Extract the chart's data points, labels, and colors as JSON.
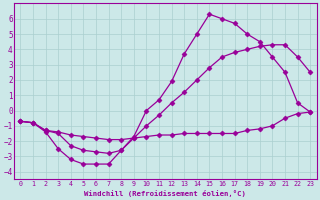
{
  "background_color": "#cce8e8",
  "grid_color": "#aacfcf",
  "line_color": "#990099",
  "xlabel": "Windchill (Refroidissement éolien,°C)",
  "ylim": [
    -4.5,
    7.0
  ],
  "xlim": [
    -0.5,
    23.5
  ],
  "yticks": [
    -4,
    -3,
    -2,
    -1,
    0,
    1,
    2,
    3,
    4,
    5,
    6
  ],
  "xticks": [
    0,
    1,
    2,
    3,
    4,
    5,
    6,
    7,
    8,
    9,
    10,
    11,
    12,
    13,
    14,
    15,
    16,
    17,
    18,
    19,
    20,
    21,
    22,
    23
  ],
  "line1_x": [
    0,
    1,
    2,
    3,
    4,
    5,
    6,
    7,
    8,
    9,
    10,
    11,
    12,
    13,
    14,
    15,
    16,
    17,
    18,
    19,
    20,
    21,
    22,
    23
  ],
  "line1_y": [
    -0.7,
    -0.8,
    -1.4,
    -2.5,
    -3.2,
    -3.5,
    -3.5,
    -3.5,
    -2.6,
    -1.8,
    -1.7,
    -1.6,
    -1.6,
    -1.5,
    -1.5,
    -1.5,
    -1.5,
    -1.5,
    -1.3,
    -1.2,
    -1.0,
    -0.5,
    -0.2,
    -0.1
  ],
  "line2_x": [
    0,
    1,
    2,
    3,
    4,
    5,
    6,
    7,
    8,
    9,
    10,
    11,
    12,
    13,
    14,
    15,
    16,
    17,
    18,
    19,
    20,
    21,
    22,
    23
  ],
  "line2_y": [
    -0.7,
    -0.8,
    -1.3,
    -1.4,
    -1.6,
    -1.7,
    -1.8,
    -1.9,
    -1.9,
    -1.8,
    -1.0,
    -0.3,
    0.5,
    1.2,
    2.0,
    2.8,
    3.5,
    3.8,
    4.0,
    4.2,
    4.3,
    4.3,
    3.5,
    2.5
  ],
  "line3_x": [
    0,
    1,
    2,
    3,
    4,
    5,
    6,
    7,
    8,
    9,
    10,
    11,
    12,
    13,
    14,
    15,
    16,
    17,
    18,
    19,
    20,
    21,
    22,
    23
  ],
  "line3_y": [
    -0.7,
    -0.8,
    -1.3,
    -1.5,
    -2.3,
    -2.6,
    -2.7,
    -2.8,
    -2.6,
    -1.7,
    0.0,
    0.7,
    1.9,
    3.7,
    5.0,
    6.3,
    6.0,
    5.7,
    5.0,
    4.5,
    3.5,
    2.5,
    0.5,
    -0.1
  ]
}
